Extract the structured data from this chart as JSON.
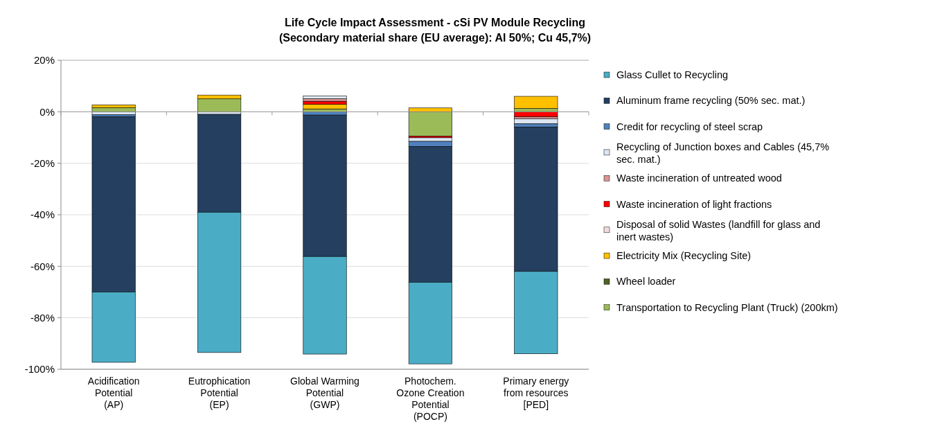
{
  "chart_data": {
    "type": "bar",
    "title": "Life Cycle Impact Assessment - cSi PV Module Recycling\n(Secondary material share (EU average): Al 50%; Cu 45,7%)",
    "stacked": true,
    "grid": "y",
    "legend": "right",
    "categories": [
      "Acidification\nPotential\n(AP)",
      "Eutrophication\nPotential\n(EP)",
      "Global Warming\nPotential\n(GWP)",
      "Photochem.\nOzone Creation\nPotential\n(POCP)",
      "Primary energy\nfrom resources\n[PED]"
    ],
    "ylim": [
      -100,
      20
    ],
    "yticks": [
      {
        "value": -100,
        "label": "-100%"
      },
      {
        "value": -80,
        "label": "-80%"
      },
      {
        "value": -60,
        "label": "-60%"
      },
      {
        "value": -40,
        "label": "-40%"
      },
      {
        "value": -20,
        "label": "-20%"
      },
      {
        "value": 0,
        "label": "0%"
      },
      {
        "value": 20,
        "label": "20%"
      }
    ],
    "series": [
      {
        "name": "Transportation to Recycling Plant (Truck) (200km)",
        "color": "#9bbb59",
        "values": [
          1.6,
          5,
          1.1,
          -9.5,
          1.3
        ]
      },
      {
        "name": "Wheel loader",
        "color": "#4f6228",
        "values": [
          0,
          0,
          0,
          0,
          0
        ]
      },
      {
        "name": "Electricity Mix (Recycling Site)",
        "color": "#ffc000",
        "values": [
          1.1,
          1.5,
          1.8,
          1.5,
          4.7
        ]
      },
      {
        "name": "Disposal of solid Wastes (landfill for glass and inert wastes)",
        "color": "#f2dcdb",
        "values": [
          0,
          0,
          0,
          0,
          0
        ]
      },
      {
        "name": "Waste incineration of light fractions",
        "color": "#ff0000",
        "values": [
          0,
          0,
          1.2,
          -0.6,
          -2
        ]
      },
      {
        "name": "Waste incineration of untreated wood",
        "color": "#d99694",
        "values": [
          0,
          0,
          1,
          0,
          -0.7
        ]
      },
      {
        "name": "Recycling of Junction boxes and Cables (45,7% sec. mat.)",
        "color": "#dce6f2",
        "values": [
          -1.2,
          -1,
          1,
          -1.4,
          -2
        ]
      },
      {
        "name": "Credit for recycling of steel scrap",
        "color": "#4f81bd",
        "values": [
          -0.8,
          null,
          -1.3,
          -2,
          -1.2
        ]
      },
      {
        "name": "Aluminum frame recycling (50% sec. mat.)",
        "color": "#243f60",
        "values": [
          -68,
          -38,
          -54.9,
          -52.7,
          -56.1
        ]
      },
      {
        "name": "Glass Cullet to Recycling",
        "color": "#4bacc6",
        "values": [
          -27.3,
          -54.5,
          -37.9,
          -31.7,
          -32
        ]
      }
    ]
  }
}
